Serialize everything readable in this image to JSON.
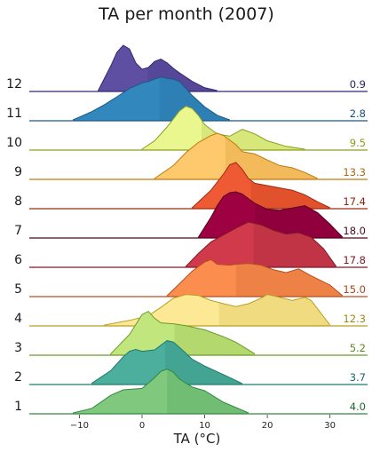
{
  "chart_data": {
    "type": "ridgeline",
    "title": "TA per month (2007)",
    "xlabel": "TA (°C)",
    "xlim": [
      -18,
      36
    ],
    "xticks": [
      -10,
      0,
      10,
      20,
      30
    ],
    "series": [
      {
        "name": "1",
        "mean": "4.0",
        "mean_value": 4.0,
        "fill": "#80c87e",
        "dark": "#2f8a40",
        "label_color": "#1f6b2a",
        "x": [
          -11,
          -8,
          -5,
          -3,
          0,
          2,
          3,
          4,
          5,
          6,
          8,
          10,
          13,
          17
        ],
        "y": [
          0.02,
          0.12,
          0.4,
          0.52,
          0.55,
          0.78,
          0.92,
          0.97,
          0.9,
          0.75,
          0.58,
          0.5,
          0.25,
          0.02
        ]
      },
      {
        "name": "2",
        "mean": "3.7",
        "mean_value": 3.7,
        "fill": "#4cae9d",
        "dark": "#1f7a6c",
        "label_color": "#1b6a5c",
        "x": [
          -8,
          -5,
          -3,
          -2,
          -1,
          0,
          2,
          3,
          4,
          5,
          6,
          8,
          10,
          14,
          16
        ],
        "y": [
          0.03,
          0.3,
          0.6,
          0.72,
          0.76,
          0.72,
          0.75,
          0.85,
          0.95,
          0.92,
          0.8,
          0.55,
          0.4,
          0.15,
          0.02
        ]
      },
      {
        "name": "3",
        "mean": "5.2",
        "mean_value": 5.2,
        "fill": "#c2e67e",
        "dark": "#6b9a25",
        "label_color": "#5a8a22",
        "x": [
          -5,
          -2,
          0,
          1,
          2,
          3,
          5,
          7,
          10,
          13,
          15,
          18
        ],
        "y": [
          0.03,
          0.45,
          0.88,
          0.95,
          0.8,
          0.7,
          0.68,
          0.64,
          0.55,
          0.4,
          0.28,
          0.03
        ]
      },
      {
        "name": "4",
        "mean": "12.3",
        "mean_value": 12.3,
        "fill": "#fde896",
        "dark": "#b8a020",
        "label_color": "#9a8a18",
        "x": [
          -6,
          -2,
          1,
          3,
          5,
          7,
          9,
          11,
          13,
          15,
          17,
          19,
          20,
          22,
          24,
          26,
          27,
          30
        ],
        "y": [
          0.02,
          0.12,
          0.22,
          0.4,
          0.6,
          0.68,
          0.66,
          0.55,
          0.48,
          0.42,
          0.48,
          0.6,
          0.68,
          0.62,
          0.55,
          0.62,
          0.55,
          0.02
        ]
      },
      {
        "name": "5",
        "mean": "15.0",
        "mean_value": 15.0,
        "fill": "#fb8d4f",
        "dark": "#b5501f",
        "label_color": "#a3471c",
        "x": [
          4,
          6,
          8,
          10,
          11,
          12,
          14,
          15,
          17,
          19,
          21,
          23,
          25,
          27,
          30,
          32
        ],
        "y": [
          0.02,
          0.28,
          0.55,
          0.75,
          0.8,
          0.7,
          0.68,
          0.7,
          0.72,
          0.68,
          0.58,
          0.52,
          0.6,
          0.45,
          0.25,
          0.02
        ]
      },
      {
        "name": "6",
        "mean": "17.8",
        "mean_value": 17.8,
        "fill": "#d03a4b",
        "dark": "#7e1a2a",
        "label_color": "#7a1a26",
        "x": [
          7,
          9,
          11,
          13,
          15,
          17,
          19,
          21,
          23,
          25,
          27,
          29,
          31
        ],
        "y": [
          0.02,
          0.3,
          0.55,
          0.7,
          0.85,
          0.98,
          0.92,
          0.8,
          0.72,
          0.75,
          0.65,
          0.4,
          0.02
        ]
      },
      {
        "name": "7",
        "mean": "18.0",
        "mean_value": 18.0,
        "fill": "#9e0142",
        "dark": "#55001f",
        "label_color": "#4a0a22",
        "x": [
          9,
          11,
          12,
          13,
          14,
          15,
          16,
          17,
          18,
          20,
          22,
          24,
          26,
          28,
          30,
          32
        ],
        "y": [
          0.02,
          0.45,
          0.7,
          0.9,
          0.98,
          1.0,
          0.95,
          0.85,
          0.75,
          0.62,
          0.6,
          0.65,
          0.7,
          0.55,
          0.3,
          0.02
        ]
      },
      {
        "name": "8",
        "mean": "17.4",
        "mean_value": 17.4,
        "fill": "#ee5a33",
        "dark": "#a02a10",
        "label_color": "#8a2410",
        "x": [
          8,
          11,
          13,
          14,
          15,
          16,
          17,
          18,
          20,
          22,
          24,
          26,
          28,
          30
        ],
        "y": [
          0.02,
          0.4,
          0.75,
          0.95,
          1.0,
          0.85,
          0.65,
          0.55,
          0.5,
          0.45,
          0.4,
          0.3,
          0.15,
          0.02
        ]
      },
      {
        "name": "9",
        "mean": "13.3",
        "mean_value": 13.3,
        "fill": "#fdc96c",
        "dark": "#c07a10",
        "label_color": "#a86a10",
        "x": [
          2,
          5,
          7,
          9,
          11,
          12,
          13,
          15,
          16,
          18,
          20,
          22,
          24,
          26,
          28
        ],
        "y": [
          0.02,
          0.3,
          0.58,
          0.8,
          0.95,
          1.0,
          0.95,
          0.75,
          0.6,
          0.55,
          0.42,
          0.3,
          0.25,
          0.15,
          0.02
        ]
      },
      {
        "name": "10",
        "mean": "9.5",
        "mean_value": 9.5,
        "fill": "#eaf78e",
        "dark": "#8aa020",
        "label_color": "#8a9a1a",
        "x": [
          0,
          2,
          4,
          6,
          7,
          8,
          9,
          10,
          11,
          12,
          14,
          16,
          18,
          20,
          23,
          26
        ],
        "y": [
          0.02,
          0.2,
          0.5,
          0.85,
          0.95,
          0.9,
          0.75,
          0.55,
          0.45,
          0.35,
          0.3,
          0.45,
          0.35,
          0.2,
          0.08,
          0.02
        ]
      },
      {
        "name": "11",
        "mean": "2.8",
        "mean_value": 2.8,
        "fill": "#3288bd",
        "dark": "#1a5a88",
        "label_color": "#174f78",
        "x": [
          -11,
          -8,
          -6,
          -4,
          -2,
          0,
          1,
          2,
          3,
          4,
          5,
          6,
          8,
          10,
          12,
          14
        ],
        "y": [
          0.02,
          0.2,
          0.35,
          0.52,
          0.7,
          0.82,
          0.85,
          0.9,
          0.95,
          0.92,
          0.9,
          0.85,
          0.55,
          0.3,
          0.12,
          0.02
        ]
      },
      {
        "name": "12",
        "mean": "0.9",
        "mean_value": 0.9,
        "fill": "#5e4fa2",
        "dark": "#352870",
        "label_color": "#2b2060",
        "x": [
          -7,
          -5,
          -4,
          -3,
          -2,
          -1,
          0,
          1,
          2,
          3,
          4,
          5,
          6,
          8,
          10,
          12
        ],
        "y": [
          0.02,
          0.55,
          0.85,
          1.0,
          0.92,
          0.62,
          0.48,
          0.52,
          0.65,
          0.7,
          0.62,
          0.5,
          0.4,
          0.22,
          0.08,
          0.02
        ]
      }
    ]
  }
}
